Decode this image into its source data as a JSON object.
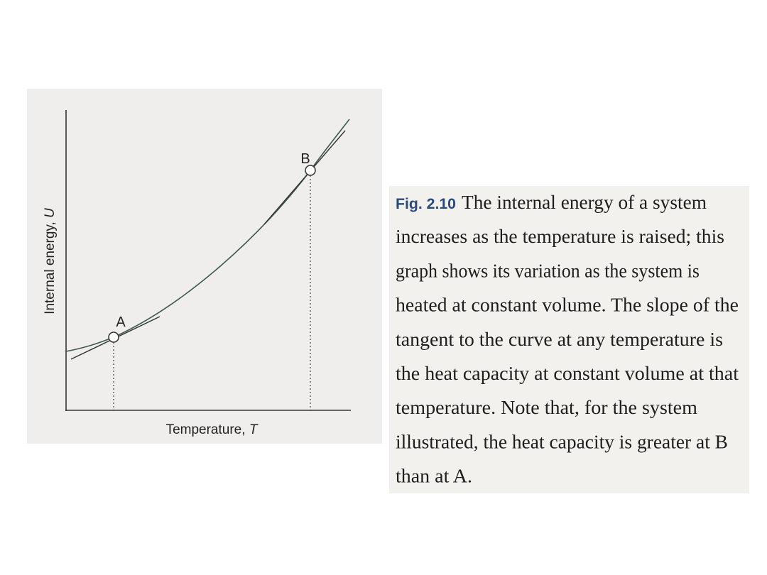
{
  "figure": {
    "y_axis": {
      "text": "Internal energy, ",
      "symbol": "U"
    },
    "x_axis": {
      "text": "Temperature, ",
      "symbol": "T"
    },
    "points": [
      {
        "label": "A"
      },
      {
        "label": "B"
      }
    ]
  },
  "caption": {
    "label": "Fig. 2.10",
    "lines": [
      "The internal energy of a system",
      "increases as the temperature is raised; this",
      "graph shows its variation as the system is",
      "heated at constant volume. The slope of the",
      "tangent to the curve at any temperature is",
      "the heat capacity at constant volume at that",
      "temperature. Note that, for the system",
      "illustrated, the heat capacity is greater at B",
      "than at A."
    ]
  }
}
